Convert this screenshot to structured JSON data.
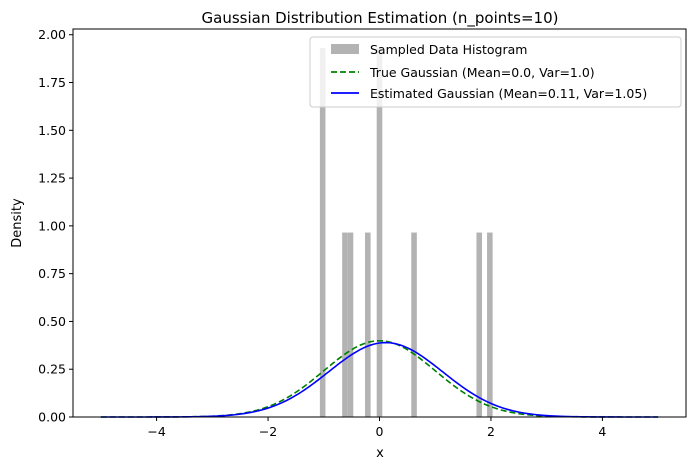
{
  "chart_data": {
    "type": "bar",
    "title": "Gaussian Distribution Estimation (n_points=10)",
    "xlabel": "x",
    "ylabel": "Density",
    "xlim": [
      -5.5,
      5.5
    ],
    "ylim": [
      0,
      2.03
    ],
    "x_ticks": [
      -4,
      -2,
      0,
      2,
      4
    ],
    "x_tick_labels": [
      "−4",
      "−2",
      "0",
      "2",
      "4"
    ],
    "y_ticks": [
      0,
      0.25,
      0.5,
      0.75,
      1.0,
      1.25,
      1.5,
      1.75,
      2.0
    ],
    "y_tick_labels": [
      "0.00",
      "0.25",
      "0.50",
      "0.75",
      "1.00",
      "1.25",
      "1.50",
      "1.75",
      "2.00"
    ],
    "grid": false,
    "legend_position": "top-right",
    "histogram": {
      "name": "Sampled Data Histogram",
      "color": "#b3b3b3",
      "bins": [
        {
          "x0": -1.07,
          "x1": -0.97,
          "value": 1.93
        },
        {
          "x0": -0.67,
          "x1": -0.57,
          "value": 0.965
        },
        {
          "x0": -0.57,
          "x1": -0.47,
          "value": 0.965
        },
        {
          "x0": -0.26,
          "x1": -0.16,
          "value": 0.965
        },
        {
          "x0": -0.05,
          "x1": 0.05,
          "value": 1.93
        },
        {
          "x0": 0.57,
          "x1": 0.67,
          "value": 0.965
        },
        {
          "x0": 1.74,
          "x1": 1.84,
          "value": 0.965
        },
        {
          "x0": 1.93,
          "x1": 2.03,
          "value": 0.965
        }
      ]
    },
    "series": [
      {
        "name": "True Gaussian (Mean=0.0, Var=1.0)",
        "mean": 0.0,
        "variance": 1.0,
        "color": "#008000",
        "style": "dashed",
        "x_range": [
          -5,
          5
        ]
      },
      {
        "name": "Estimated Gaussian (Mean=0.11, Var=1.05)",
        "mean": 0.11,
        "variance": 1.05,
        "color": "#0000ff",
        "style": "solid",
        "x_range": [
          -5,
          5
        ]
      }
    ]
  }
}
